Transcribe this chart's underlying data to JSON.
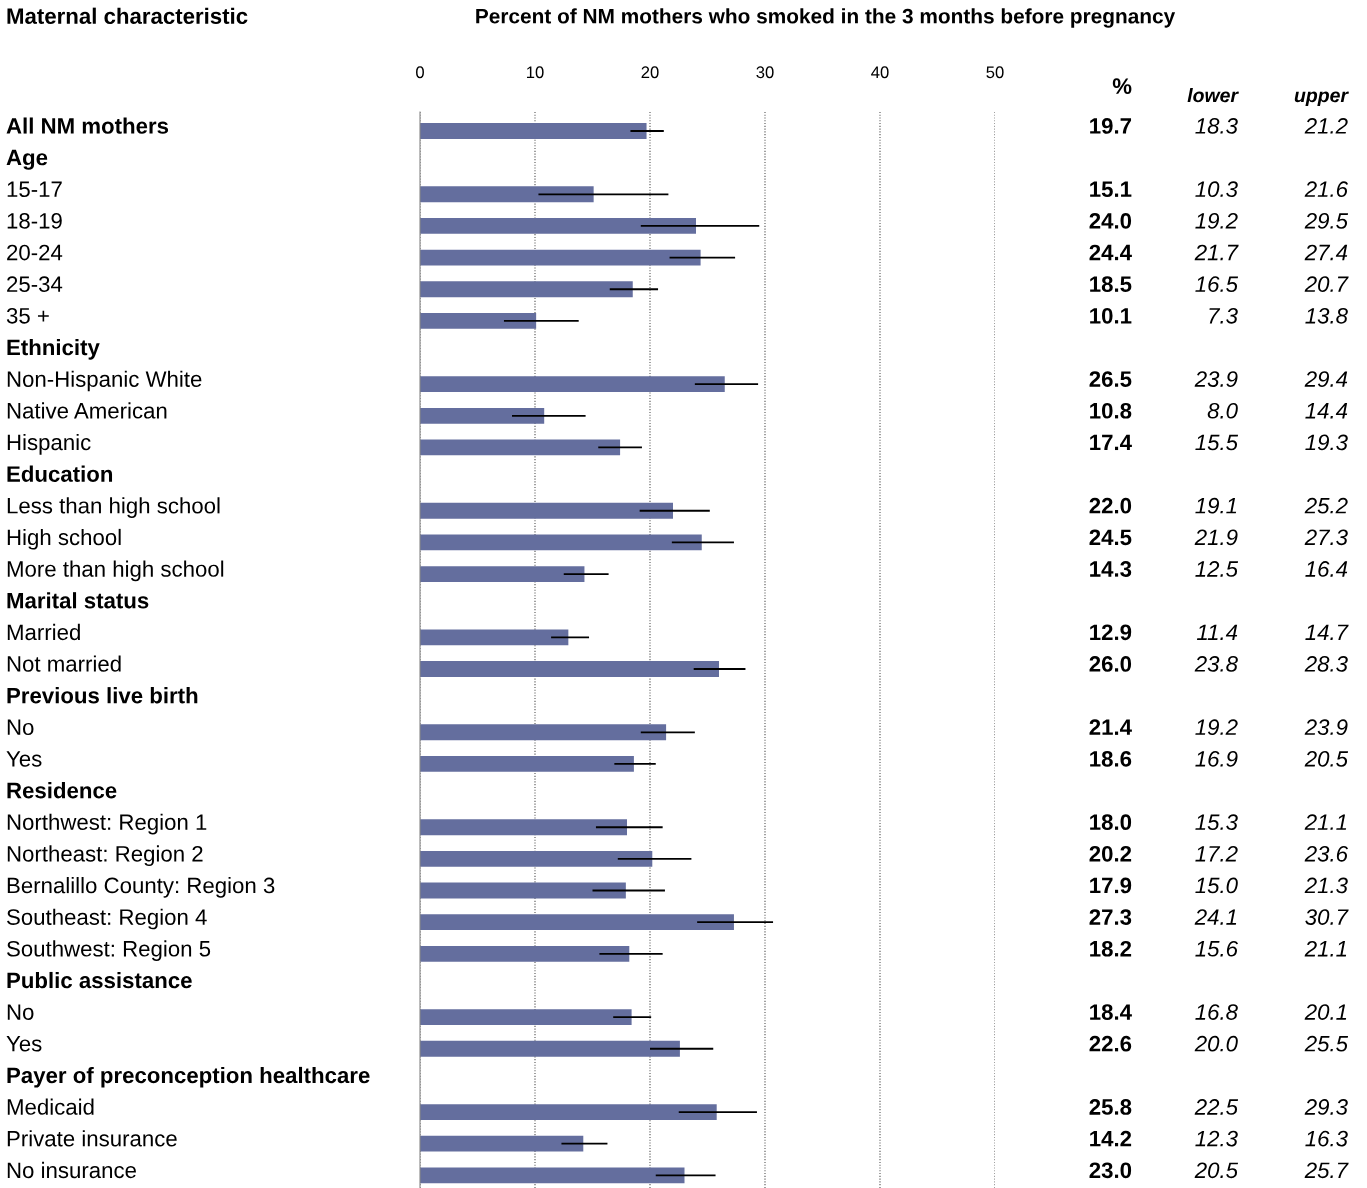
{
  "chart_data": {
    "type": "bar",
    "orientation": "horizontal",
    "title": "Percent of NM mothers who smoked in the 3 months before pregnancy",
    "ylabel": "Maternal characteristic",
    "categories": [
      "All NM mothers",
      "Age",
      "15-17",
      "18-19",
      "20-24",
      "25-34",
      "35 +",
      "Ethnicity",
      "Non-Hispanic White",
      "Native American",
      "Hispanic",
      "Education",
      "Less than high school",
      "High school",
      "More than high school",
      "Marital status",
      "Married",
      "Not married",
      "Previous live birth",
      "No",
      "Yes",
      "Residence",
      "Northwest: Region 1",
      "Northeast: Region 2",
      "Bernalillo County: Region 3",
      "Southeast: Region 4",
      "Southwest: Region 5",
      "Public assistance",
      "No",
      "Yes",
      "Payer of preconception healthcare",
      "Medicaid",
      "Private insurance",
      "No insurance"
    ],
    "values": [
      19.7,
      null,
      15.1,
      24.0,
      24.4,
      18.5,
      10.1,
      null,
      26.5,
      10.8,
      17.4,
      null,
      22.0,
      24.5,
      14.3,
      null,
      12.9,
      26.0,
      null,
      21.4,
      18.6,
      null,
      18.0,
      20.2,
      17.9,
      27.3,
      18.2,
      null,
      18.4,
      22.6,
      null,
      25.8,
      14.2,
      23.0
    ],
    "errors": [
      [
        18.3,
        21.2
      ],
      null,
      [
        10.3,
        21.6
      ],
      [
        19.2,
        29.5
      ],
      [
        21.7,
        27.4
      ],
      [
        16.5,
        20.7
      ],
      [
        7.3,
        13.8
      ],
      null,
      [
        23.9,
        29.4
      ],
      [
        8.0,
        14.4
      ],
      [
        15.5,
        19.3
      ],
      null,
      [
        19.1,
        25.2
      ],
      [
        21.9,
        27.3
      ],
      [
        12.5,
        16.4
      ],
      null,
      [
        11.4,
        14.7
      ],
      [
        23.8,
        28.3
      ],
      null,
      [
        19.2,
        23.9
      ],
      [
        16.9,
        20.5
      ],
      null,
      [
        15.3,
        21.1
      ],
      [
        17.2,
        23.6
      ],
      [
        15.0,
        21.3
      ],
      [
        24.1,
        30.7
      ],
      [
        15.6,
        21.1
      ],
      null,
      [
        16.8,
        20.1
      ],
      [
        20.0,
        25.5
      ],
      null,
      [
        22.5,
        29.3
      ],
      [
        12.3,
        16.3
      ],
      [
        20.5,
        25.7
      ]
    ],
    "value_labels": [
      "19.7",
      null,
      "15.1",
      "24.0",
      "24.4",
      "18.5",
      "10.1",
      null,
      "26.5",
      "10.8",
      "17.4",
      null,
      "22.0",
      "24.5",
      "14.3",
      null,
      "12.9",
      "26.0",
      null,
      "21.4",
      "18.6",
      null,
      "18.0",
      "20.2",
      "17.9",
      "27.3",
      "18.2",
      null,
      "18.4",
      "22.6",
      null,
      "25.8",
      "14.2",
      "23.0"
    ],
    "data_labels": true,
    "color": "#646e9e",
    "xlim": [
      0,
      50
    ],
    "xticks": [
      0,
      10,
      20,
      30,
      40,
      50
    ],
    "grid": "x",
    "legend": false,
    "annotations": [
      "%",
      "lower",
      "upper",
      "18.3",
      "21.2",
      "10.3",
      "21.6",
      "19.2",
      "29.5",
      "21.7",
      "27.4",
      "16.5",
      "20.7",
      "7.3",
      "13.8",
      "23.9",
      "29.4",
      "8.0",
      "14.4",
      "15.5",
      "19.3",
      "19.1",
      "25.2",
      "21.9",
      "27.3",
      "12.5",
      "16.4",
      "11.4",
      "14.7",
      "23.8",
      "28.3",
      "19.2",
      "23.9",
      "16.9",
      "20.5",
      "15.3",
      "21.1",
      "17.2",
      "23.6",
      "15.0",
      "21.3",
      "24.1",
      "30.7",
      "15.6",
      "21.1",
      "16.8",
      "20.1",
      "20.0",
      "25.5",
      "22.5",
      "29.3",
      "12.3",
      "16.3",
      "20.5",
      "25.7"
    ]
  }
}
